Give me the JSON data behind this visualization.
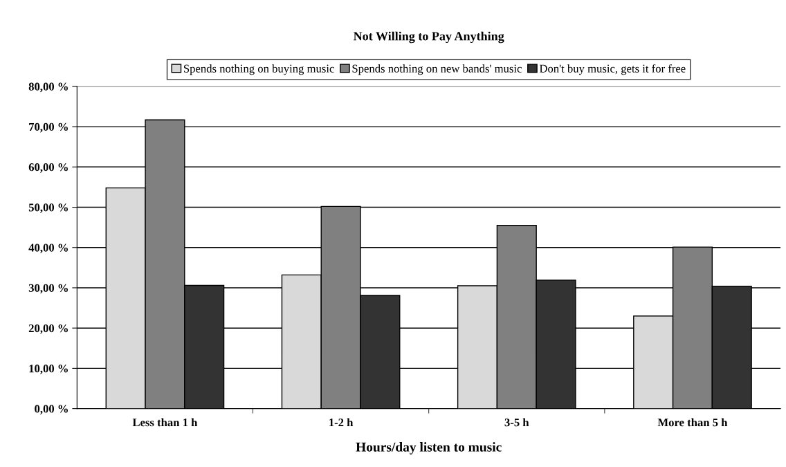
{
  "chart_data": {
    "type": "bar",
    "title": "Not Willing to Pay Anything",
    "xlabel": "Hours/day listen to music",
    "categories": [
      "Less than 1 h",
      "1-2 h",
      "3-5 h",
      "More than 5 h"
    ],
    "series": [
      {
        "name": "Spends nothing on buying music",
        "color": "#d9d9d9",
        "values": [
          54.8,
          33.2,
          30.5,
          23.0
        ]
      },
      {
        "name": "Spends nothing on new bands' music",
        "color": "#808080",
        "values": [
          71.7,
          50.2,
          45.5,
          40.1
        ]
      },
      {
        "name": "Don't buy music, gets it for free",
        "color": "#333333",
        "values": [
          30.6,
          28.1,
          31.9,
          30.4
        ]
      }
    ],
    "ylim": [
      0,
      80
    ],
    "yticks": [
      {
        "value": 0,
        "label": "0,00 %"
      },
      {
        "value": 10,
        "label": "10,00 %"
      },
      {
        "value": 20,
        "label": "20,00 %"
      },
      {
        "value": 30,
        "label": "30,00 %"
      },
      {
        "value": 40,
        "label": "40,00 %"
      },
      {
        "value": 50,
        "label": "50,00 %"
      },
      {
        "value": 60,
        "label": "60,00 %"
      },
      {
        "value": 70,
        "label": "70,00 %"
      },
      {
        "value": 80,
        "label": "80,00 %"
      }
    ],
    "grid": "y",
    "legend": "top"
  }
}
